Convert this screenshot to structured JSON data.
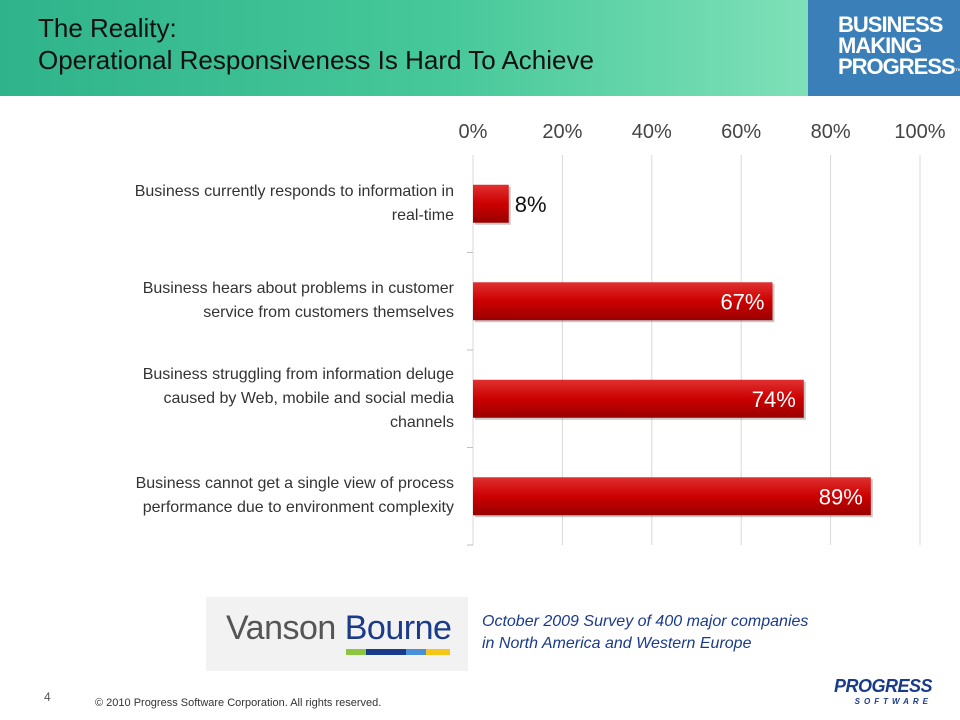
{
  "header": {
    "title_line1": "The Reality:",
    "title_line2": "Operational Responsiveness Is Hard To Achieve"
  },
  "brand": {
    "line1": "BUSINESS",
    "line2": "MAKING",
    "line3": "PROGRESS",
    "tm": "™"
  },
  "chart_data": {
    "type": "bar",
    "orientation": "horizontal",
    "categories": [
      "Business currently responds to information in real-time",
      "Business hears about problems in customer service from customers themselves",
      "Business struggling from information deluge caused by Web, mobile and social media channels",
      "Business cannot get a single view of process performance due to environment complexity"
    ],
    "category_lines": [
      [
        "Business currently responds to information in",
        "real-time"
      ],
      [
        "Business hears about problems in customer",
        "service from customers themselves"
      ],
      [
        "Business struggling from information deluge",
        "caused by Web, mobile and social media",
        "channels"
      ],
      [
        "Business cannot get a single view of process",
        "performance due to environment complexity"
      ]
    ],
    "values": [
      8,
      67,
      74,
      89
    ],
    "data_labels": [
      "8%",
      "67%",
      "74%",
      "89%"
    ],
    "xlim": [
      0,
      100
    ],
    "x_ticks": [
      0,
      20,
      40,
      60,
      80,
      100
    ],
    "x_tick_labels": [
      "0%",
      "20%",
      "40%",
      "60%",
      "80%",
      "100%"
    ],
    "x_axis_position": "top",
    "grid": true,
    "bar_color": "#cc0000",
    "grid_color": "#d9d9d9"
  },
  "footer": {
    "logo_part1": "Vanson",
    "logo_part2": "Bourne",
    "survey_line1": "October 2009 Survey of 400 major companies",
    "survey_line2": "in North America and Western Europe",
    "page_number": "4",
    "copyright": "© 2010 Progress Software Corporation. All rights reserved.",
    "progress_logo_line1": "PROGRESS",
    "progress_logo_line2": "SOFTWARE"
  }
}
